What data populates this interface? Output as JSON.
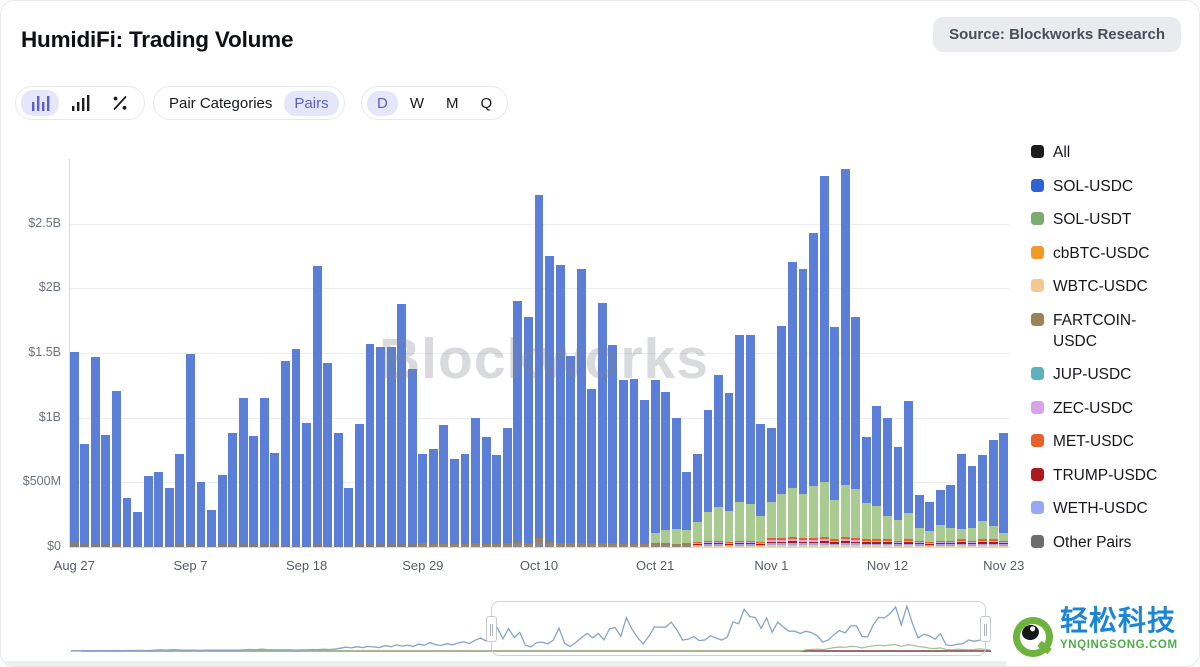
{
  "header": {
    "title": "HumidiFi: Trading Volume",
    "source_badge": "Source: Blockworks Research"
  },
  "toolbar": {
    "chart_type_icons": [
      "stacked-bar-chart",
      "ascending-bar-chart",
      "percent-share"
    ],
    "chart_type_selected": 0,
    "category_options": [
      "Pair Categories",
      "Pairs"
    ],
    "category_selected": "Pairs",
    "period_options": [
      "D",
      "W",
      "M",
      "Q"
    ],
    "period_selected": "D",
    "accent_color": "#5a5fc4",
    "accent_bg": "#e5e6f9"
  },
  "watermark": "Blockworks",
  "legend": {
    "items": [
      {
        "label": "All",
        "color": "#1c1c1e"
      },
      {
        "label": "SOL-USDC",
        "color": "#2e62d9"
      },
      {
        "label": "SOL-USDT",
        "color": "#7cab72"
      },
      {
        "label": "cbBTC-USDC",
        "color": "#f09a28"
      },
      {
        "label": "WBTC-USDC",
        "color": "#f2c890"
      },
      {
        "label": "FARTCOIN-USDC",
        "color": "#9b8357"
      },
      {
        "label": "JUP-USDC",
        "color": "#5fb0bd"
      },
      {
        "label": "ZEC-USDC",
        "color": "#d9a3ea"
      },
      {
        "label": "MET-USDC",
        "color": "#ea5f2a"
      },
      {
        "label": "TRUMP-USDC",
        "color": "#ab1a1d"
      },
      {
        "label": "WETH-USDC",
        "color": "#97a8f2"
      },
      {
        "label": "Other Pairs",
        "color": "#6d6d70"
      }
    ]
  },
  "chart_data": {
    "type": "bar",
    "subtype": "stacked-daily-volume",
    "title": "HumidiFi: Trading Volume",
    "unit": "USD billions",
    "ylim": [
      0,
      3.0
    ],
    "grid": true,
    "legend_position": "right",
    "yticks": [
      {
        "label": "$0",
        "value": 0
      },
      {
        "label": "$500M",
        "value": 0.5
      },
      {
        "label": "$1B",
        "value": 1.0
      },
      {
        "label": "$1.5B",
        "value": 1.5
      },
      {
        "label": "$2B",
        "value": 2.0
      },
      {
        "label": "$2.5B",
        "value": 2.5
      }
    ],
    "xticks": [
      {
        "label": "Aug 27",
        "index": 0
      },
      {
        "label": "Sep 7",
        "index": 11
      },
      {
        "label": "Sep 18",
        "index": 22
      },
      {
        "label": "Sep 29",
        "index": 33
      },
      {
        "label": "Oct 10",
        "index": 44
      },
      {
        "label": "Oct 21",
        "index": 55
      },
      {
        "label": "Nov 1",
        "index": 66
      },
      {
        "label": "Nov 12",
        "index": 77
      },
      {
        "label": "Nov 23",
        "index": 88
      }
    ],
    "totals_busd": [
      1.51,
      0.8,
      1.47,
      0.87,
      1.21,
      0.38,
      0.27,
      0.55,
      0.58,
      0.46,
      0.72,
      1.49,
      0.5,
      0.29,
      0.56,
      0.88,
      1.15,
      0.86,
      1.15,
      0.73,
      1.44,
      1.53,
      0.96,
      2.17,
      1.42,
      0.88,
      0.46,
      0.95,
      1.57,
      1.55,
      1.55,
      1.88,
      1.38,
      0.72,
      0.76,
      0.94,
      0.68,
      0.72,
      1.0,
      0.85,
      0.71,
      0.92,
      1.9,
      1.78,
      2.72,
      2.25,
      2.18,
      1.48,
      2.15,
      1.22,
      1.89,
      1.56,
      1.29,
      1.3,
      1.14,
      1.29,
      1.2,
      1.0,
      0.58,
      0.72,
      1.06,
      1.33,
      1.19,
      1.64,
      1.64,
      0.95,
      0.92,
      1.71,
      2.2,
      2.15,
      2.43,
      2.87,
      1.7,
      2.92,
      1.78,
      0.85,
      1.09,
      1.0,
      0.77,
      1.13,
      0.4,
      0.35,
      0.44,
      0.48,
      0.72,
      0.63,
      0.71,
      0.83,
      0.88
    ],
    "sol_usdt_busd": [
      0,
      0,
      0,
      0,
      0,
      0,
      0,
      0,
      0,
      0,
      0,
      0,
      0,
      0,
      0,
      0,
      0,
      0,
      0,
      0,
      0,
      0,
      0,
      0,
      0,
      0,
      0,
      0,
      0,
      0,
      0,
      0,
      0,
      0,
      0,
      0,
      0,
      0,
      0,
      0,
      0,
      0,
      0,
      0,
      0,
      0,
      0,
      0,
      0,
      0,
      0,
      0,
      0,
      0,
      0,
      0.08,
      0.1,
      0.12,
      0.1,
      0.15,
      0.22,
      0.26,
      0.24,
      0.3,
      0.28,
      0.2,
      0.28,
      0.34,
      0.38,
      0.34,
      0.4,
      0.42,
      0.3,
      0.4,
      0.38,
      0.28,
      0.26,
      0.18,
      0.16,
      0.2,
      0.1,
      0.08,
      0.12,
      0.1,
      0.08,
      0.1,
      0.14,
      0.1,
      0.06
    ],
    "misc_busd": [
      0.04,
      0.02,
      0.03,
      0.02,
      0.02,
      0.01,
      0.01,
      0.01,
      0.01,
      0.01,
      0.02,
      0.03,
      0.01,
      0.01,
      0.02,
      0.02,
      0.02,
      0.02,
      0.02,
      0.02,
      0.01,
      0.01,
      0.01,
      0.02,
      0.01,
      0.01,
      0.01,
      0.02,
      0.02,
      0.02,
      0.02,
      0.02,
      0.02,
      0.03,
      0.02,
      0.02,
      0.02,
      0.02,
      0.03,
      0.02,
      0.02,
      0.03,
      0.04,
      0.03,
      0.07,
      0.04,
      0.03,
      0.03,
      0.03,
      0.03,
      0.03,
      0.03,
      0.02,
      0.02,
      0.02,
      0.03,
      0.03,
      0.02,
      0.03,
      0.04,
      0.05,
      0.05,
      0.04,
      0.05,
      0.05,
      0.04,
      0.07,
      0.07,
      0.08,
      0.07,
      0.07,
      0.08,
      0.06,
      0.08,
      0.07,
      0.06,
      0.06,
      0.06,
      0.05,
      0.06,
      0.05,
      0.04,
      0.05,
      0.05,
      0.06,
      0.05,
      0.06,
      0.06,
      0.05
    ],
    "bar_colors": {
      "sol_usdc": "#5b7fd8",
      "sol_usdt": "#a9cb92"
    },
    "misc_render": {
      "early_end": 33,
      "mid_end": 59,
      "early": [
        "#7d7d82"
      ],
      "mid": [
        "#8a8a8e",
        "#9b8357"
      ],
      "late": [
        "#f2c890",
        "#97a8f2",
        "#ab1a1d",
        "#d9a3ea",
        "#ea5f2a"
      ]
    }
  },
  "navigator": {
    "line_color": "#86a4c8",
    "green_line_color": "#9dc18b",
    "baseline_color": "#7c3a42",
    "prefix_busd": [
      0.02,
      0.02,
      0.02,
      0.02,
      0.02,
      0.03,
      0.02,
      0.02,
      0.03,
      0.02,
      0.03,
      0.03,
      0.04,
      0.03,
      0.03,
      0.05,
      0.08,
      0.06,
      0.09,
      0.07,
      0.05,
      0.06,
      0.05,
      0.04,
      0.05,
      0.06,
      0.05,
      0.06,
      0.05,
      0.06,
      0.05,
      0.08,
      0.1,
      0.08,
      0.12,
      0.09,
      0.07,
      0.08,
      0.07,
      0.08,
      0.06,
      0.07,
      0.08,
      0.1,
      0.09,
      0.11,
      0.1,
      0.12,
      0.18,
      0.25,
      0.2,
      0.28,
      0.22,
      0.3,
      0.26,
      0.22,
      0.35,
      0.28,
      0.4,
      0.32,
      0.38,
      0.3,
      0.45,
      0.38,
      0.55,
      0.42,
      0.36,
      0.48,
      0.4,
      0.52,
      0.6,
      0.48,
      0.7,
      0.85,
      0.65,
      1.1
    ]
  },
  "logo": {
    "text": "轻松科技",
    "domain": "YNQINGSONG.COM"
  }
}
